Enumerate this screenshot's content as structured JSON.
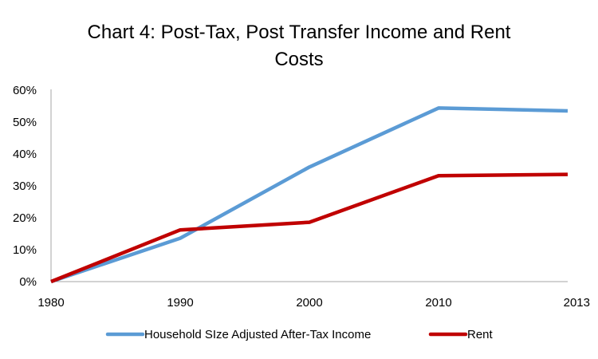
{
  "chart_data": {
    "type": "line",
    "title_lines": [
      "Chart 4: Post-Tax, Post Transfer Income and Rent",
      "Costs"
    ],
    "categories": [
      "1980",
      "1990",
      "2000",
      "2010",
      "2013"
    ],
    "y_ticks": [
      "0%",
      "10%",
      "20%",
      "30%",
      "40%",
      "50%",
      "60%"
    ],
    "ylim": [
      0,
      60
    ],
    "y_unit": "%",
    "grid": false,
    "legend_position": "bottom",
    "series": [
      {
        "name": "Household SIze Adjusted After-Tax Income",
        "color": "#5b9bd5",
        "values": [
          0,
          13.6,
          35.9,
          54.4,
          53.5
        ]
      },
      {
        "name": "Rent",
        "color": "#c00000",
        "values": [
          0,
          16.2,
          18.6,
          33.2,
          33.6
        ]
      }
    ]
  }
}
